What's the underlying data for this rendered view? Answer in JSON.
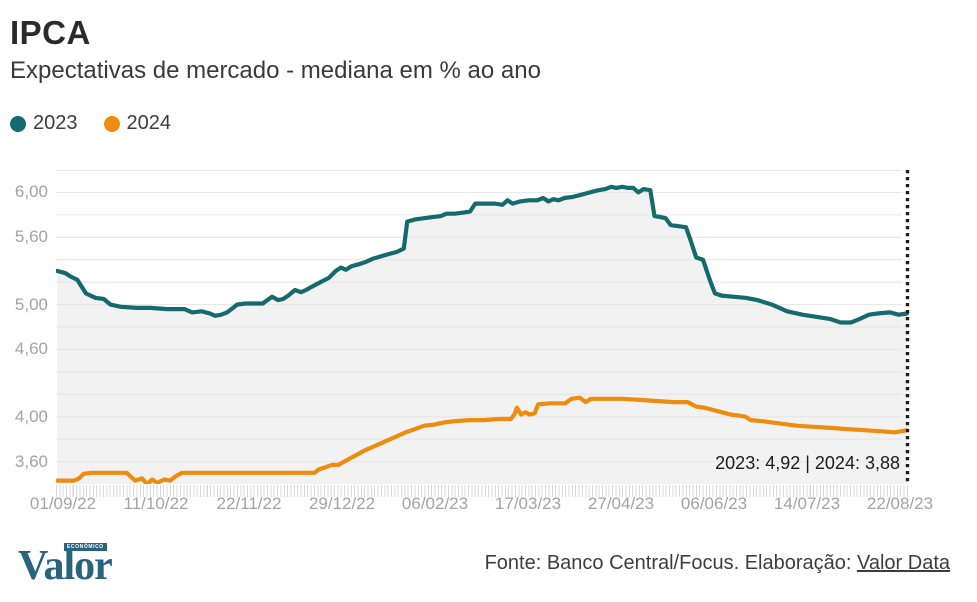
{
  "header": {
    "title": "IPCA",
    "subtitle": "Expectativas de mercado - mediana em % ao ano"
  },
  "legend": [
    {
      "label": "2023",
      "color": "#156a6d"
    },
    {
      "label": "2024",
      "color": "#ee8c0f"
    }
  ],
  "annotation": "2023: 4,92  |  2024: 3,88",
  "footer": {
    "logo_word": "Valor",
    "logo_sub": "ECONÔMICO",
    "source_prefix": "Fonte: Banco Central/Focus. Elaboração: ",
    "source_link": "Valor Data"
  },
  "chart_data": {
    "type": "line",
    "title": "IPCA",
    "subtitle": "Expectativas de mercado - mediana em % ao ano",
    "ylim": [
      3.4,
      6.2
    ],
    "grid_min": 3.6,
    "grid_max": 6.2,
    "grid_step": 0.2,
    "grid_color": "#e4e4e4",
    "area_fill": "#f2f2f2",
    "cutoff_line_color": "#1d1d1d",
    "y_ticks": [
      {
        "value": 6.0,
        "label": "6,00"
      },
      {
        "value": 5.6,
        "label": "5,60"
      },
      {
        "value": 5.0,
        "label": "5,00"
      },
      {
        "value": 4.6,
        "label": "4,60"
      },
      {
        "value": 4.0,
        "label": "4,00"
      },
      {
        "value": 3.6,
        "label": "3,60"
      }
    ],
    "x_ticklabels": [
      "01/09/22",
      "11/10/22",
      "22/11/22",
      "29/12/22",
      "06/02/23",
      "17/03/23",
      "27/04/23",
      "06/06/23",
      "14/07/23",
      "22/08/23"
    ],
    "end_values": {
      "2023": "4,92",
      "2024": "3,88"
    },
    "series": [
      {
        "name": "2023",
        "color": "#156a6d",
        "points": [
          [
            0.0,
            5.3
          ],
          [
            0.01,
            5.28
          ],
          [
            0.016,
            5.25
          ],
          [
            0.024,
            5.22
          ],
          [
            0.034,
            5.1
          ],
          [
            0.045,
            5.06
          ],
          [
            0.055,
            5.05
          ],
          [
            0.063,
            5.0
          ],
          [
            0.075,
            4.98
          ],
          [
            0.094,
            4.97
          ],
          [
            0.11,
            4.97
          ],
          [
            0.13,
            4.96
          ],
          [
            0.15,
            4.96
          ],
          [
            0.159,
            4.93
          ],
          [
            0.17,
            4.94
          ],
          [
            0.18,
            4.92
          ],
          [
            0.186,
            4.9
          ],
          [
            0.193,
            4.91
          ],
          [
            0.2,
            4.93
          ],
          [
            0.207,
            4.97
          ],
          [
            0.212,
            5.0
          ],
          [
            0.222,
            5.01
          ],
          [
            0.232,
            5.01
          ],
          [
            0.242,
            5.01
          ],
          [
            0.253,
            5.07
          ],
          [
            0.26,
            5.04
          ],
          [
            0.266,
            5.05
          ],
          [
            0.272,
            5.08
          ],
          [
            0.28,
            5.13
          ],
          [
            0.287,
            5.11
          ],
          [
            0.293,
            5.13
          ],
          [
            0.3,
            5.16
          ],
          [
            0.31,
            5.2
          ],
          [
            0.32,
            5.24
          ],
          [
            0.328,
            5.3
          ],
          [
            0.334,
            5.33
          ],
          [
            0.34,
            5.31
          ],
          [
            0.346,
            5.34
          ],
          [
            0.355,
            5.36
          ],
          [
            0.363,
            5.38
          ],
          [
            0.372,
            5.41
          ],
          [
            0.381,
            5.43
          ],
          [
            0.39,
            5.45
          ],
          [
            0.4,
            5.47
          ],
          [
            0.408,
            5.5
          ],
          [
            0.412,
            5.74
          ],
          [
            0.422,
            5.76
          ],
          [
            0.432,
            5.77
          ],
          [
            0.442,
            5.78
          ],
          [
            0.452,
            5.79
          ],
          [
            0.458,
            5.81
          ],
          [
            0.468,
            5.81
          ],
          [
            0.478,
            5.82
          ],
          [
            0.486,
            5.83
          ],
          [
            0.492,
            5.9
          ],
          [
            0.505,
            5.9
          ],
          [
            0.515,
            5.9
          ],
          [
            0.524,
            5.89
          ],
          [
            0.53,
            5.93
          ],
          [
            0.536,
            5.9
          ],
          [
            0.545,
            5.92
          ],
          [
            0.555,
            5.93
          ],
          [
            0.565,
            5.93
          ],
          [
            0.572,
            5.95
          ],
          [
            0.578,
            5.92
          ],
          [
            0.584,
            5.94
          ],
          [
            0.59,
            5.93
          ],
          [
            0.597,
            5.95
          ],
          [
            0.607,
            5.96
          ],
          [
            0.617,
            5.98
          ],
          [
            0.627,
            6.0
          ],
          [
            0.637,
            6.02
          ],
          [
            0.645,
            6.03
          ],
          [
            0.652,
            6.05
          ],
          [
            0.658,
            6.04
          ],
          [
            0.665,
            6.05
          ],
          [
            0.672,
            6.04
          ],
          [
            0.678,
            6.04
          ],
          [
            0.684,
            6.0
          ],
          [
            0.69,
            6.03
          ],
          [
            0.698,
            6.02
          ],
          [
            0.703,
            5.79
          ],
          [
            0.71,
            5.78
          ],
          [
            0.716,
            5.77
          ],
          [
            0.722,
            5.71
          ],
          [
            0.73,
            5.7
          ],
          [
            0.74,
            5.69
          ],
          [
            0.745,
            5.58
          ],
          [
            0.752,
            5.42
          ],
          [
            0.76,
            5.4
          ],
          [
            0.768,
            5.22
          ],
          [
            0.774,
            5.1
          ],
          [
            0.782,
            5.08
          ],
          [
            0.795,
            5.07
          ],
          [
            0.81,
            5.06
          ],
          [
            0.824,
            5.04
          ],
          [
            0.841,
            5.0
          ],
          [
            0.859,
            4.94
          ],
          [
            0.877,
            4.91
          ],
          [
            0.894,
            4.89
          ],
          [
            0.91,
            4.87
          ],
          [
            0.922,
            4.84
          ],
          [
            0.934,
            4.84
          ],
          [
            0.944,
            4.87
          ],
          [
            0.955,
            4.91
          ],
          [
            0.965,
            4.92
          ],
          [
            0.98,
            4.93
          ],
          [
            0.99,
            4.91
          ],
          [
            1.0,
            4.92
          ]
        ]
      },
      {
        "name": "2024",
        "color": "#ee8c0f",
        "points": [
          [
            0.0,
            3.43
          ],
          [
            0.02,
            3.43
          ],
          [
            0.026,
            3.45
          ],
          [
            0.031,
            3.49
          ],
          [
            0.04,
            3.5
          ],
          [
            0.06,
            3.5
          ],
          [
            0.082,
            3.5
          ],
          [
            0.086,
            3.47
          ],
          [
            0.092,
            3.43
          ],
          [
            0.1,
            3.45
          ],
          [
            0.106,
            3.4
          ],
          [
            0.112,
            3.44
          ],
          [
            0.118,
            3.41
          ],
          [
            0.126,
            3.44
          ],
          [
            0.133,
            3.43
          ],
          [
            0.14,
            3.47
          ],
          [
            0.147,
            3.5
          ],
          [
            0.17,
            3.5
          ],
          [
            0.22,
            3.5
          ],
          [
            0.27,
            3.5
          ],
          [
            0.303,
            3.5
          ],
          [
            0.308,
            3.53
          ],
          [
            0.316,
            3.55
          ],
          [
            0.323,
            3.57
          ],
          [
            0.331,
            3.57
          ],
          [
            0.338,
            3.6
          ],
          [
            0.35,
            3.65
          ],
          [
            0.362,
            3.7
          ],
          [
            0.374,
            3.74
          ],
          [
            0.386,
            3.78
          ],
          [
            0.398,
            3.82
          ],
          [
            0.41,
            3.86
          ],
          [
            0.421,
            3.89
          ],
          [
            0.432,
            3.92
          ],
          [
            0.444,
            3.93
          ],
          [
            0.456,
            3.95
          ],
          [
            0.468,
            3.96
          ],
          [
            0.485,
            3.97
          ],
          [
            0.502,
            3.97
          ],
          [
            0.52,
            3.98
          ],
          [
            0.534,
            3.98
          ],
          [
            0.538,
            4.02
          ],
          [
            0.541,
            4.08
          ],
          [
            0.546,
            4.02
          ],
          [
            0.551,
            4.04
          ],
          [
            0.556,
            4.02
          ],
          [
            0.562,
            4.03
          ],
          [
            0.566,
            4.11
          ],
          [
            0.58,
            4.12
          ],
          [
            0.598,
            4.12
          ],
          [
            0.605,
            4.16
          ],
          [
            0.615,
            4.17
          ],
          [
            0.622,
            4.13
          ],
          [
            0.628,
            4.16
          ],
          [
            0.645,
            4.16
          ],
          [
            0.665,
            4.16
          ],
          [
            0.685,
            4.15
          ],
          [
            0.705,
            4.14
          ],
          [
            0.725,
            4.13
          ],
          [
            0.742,
            4.13
          ],
          [
            0.752,
            4.09
          ],
          [
            0.762,
            4.08
          ],
          [
            0.772,
            4.06
          ],
          [
            0.782,
            4.04
          ],
          [
            0.792,
            4.02
          ],
          [
            0.802,
            4.01
          ],
          [
            0.81,
            4.0
          ],
          [
            0.816,
            3.97
          ],
          [
            0.83,
            3.96
          ],
          [
            0.85,
            3.94
          ],
          [
            0.87,
            3.92
          ],
          [
            0.89,
            3.91
          ],
          [
            0.91,
            3.9
          ],
          [
            0.93,
            3.89
          ],
          [
            0.95,
            3.88
          ],
          [
            0.97,
            3.87
          ],
          [
            0.985,
            3.86
          ],
          [
            1.0,
            3.88
          ]
        ]
      }
    ]
  }
}
